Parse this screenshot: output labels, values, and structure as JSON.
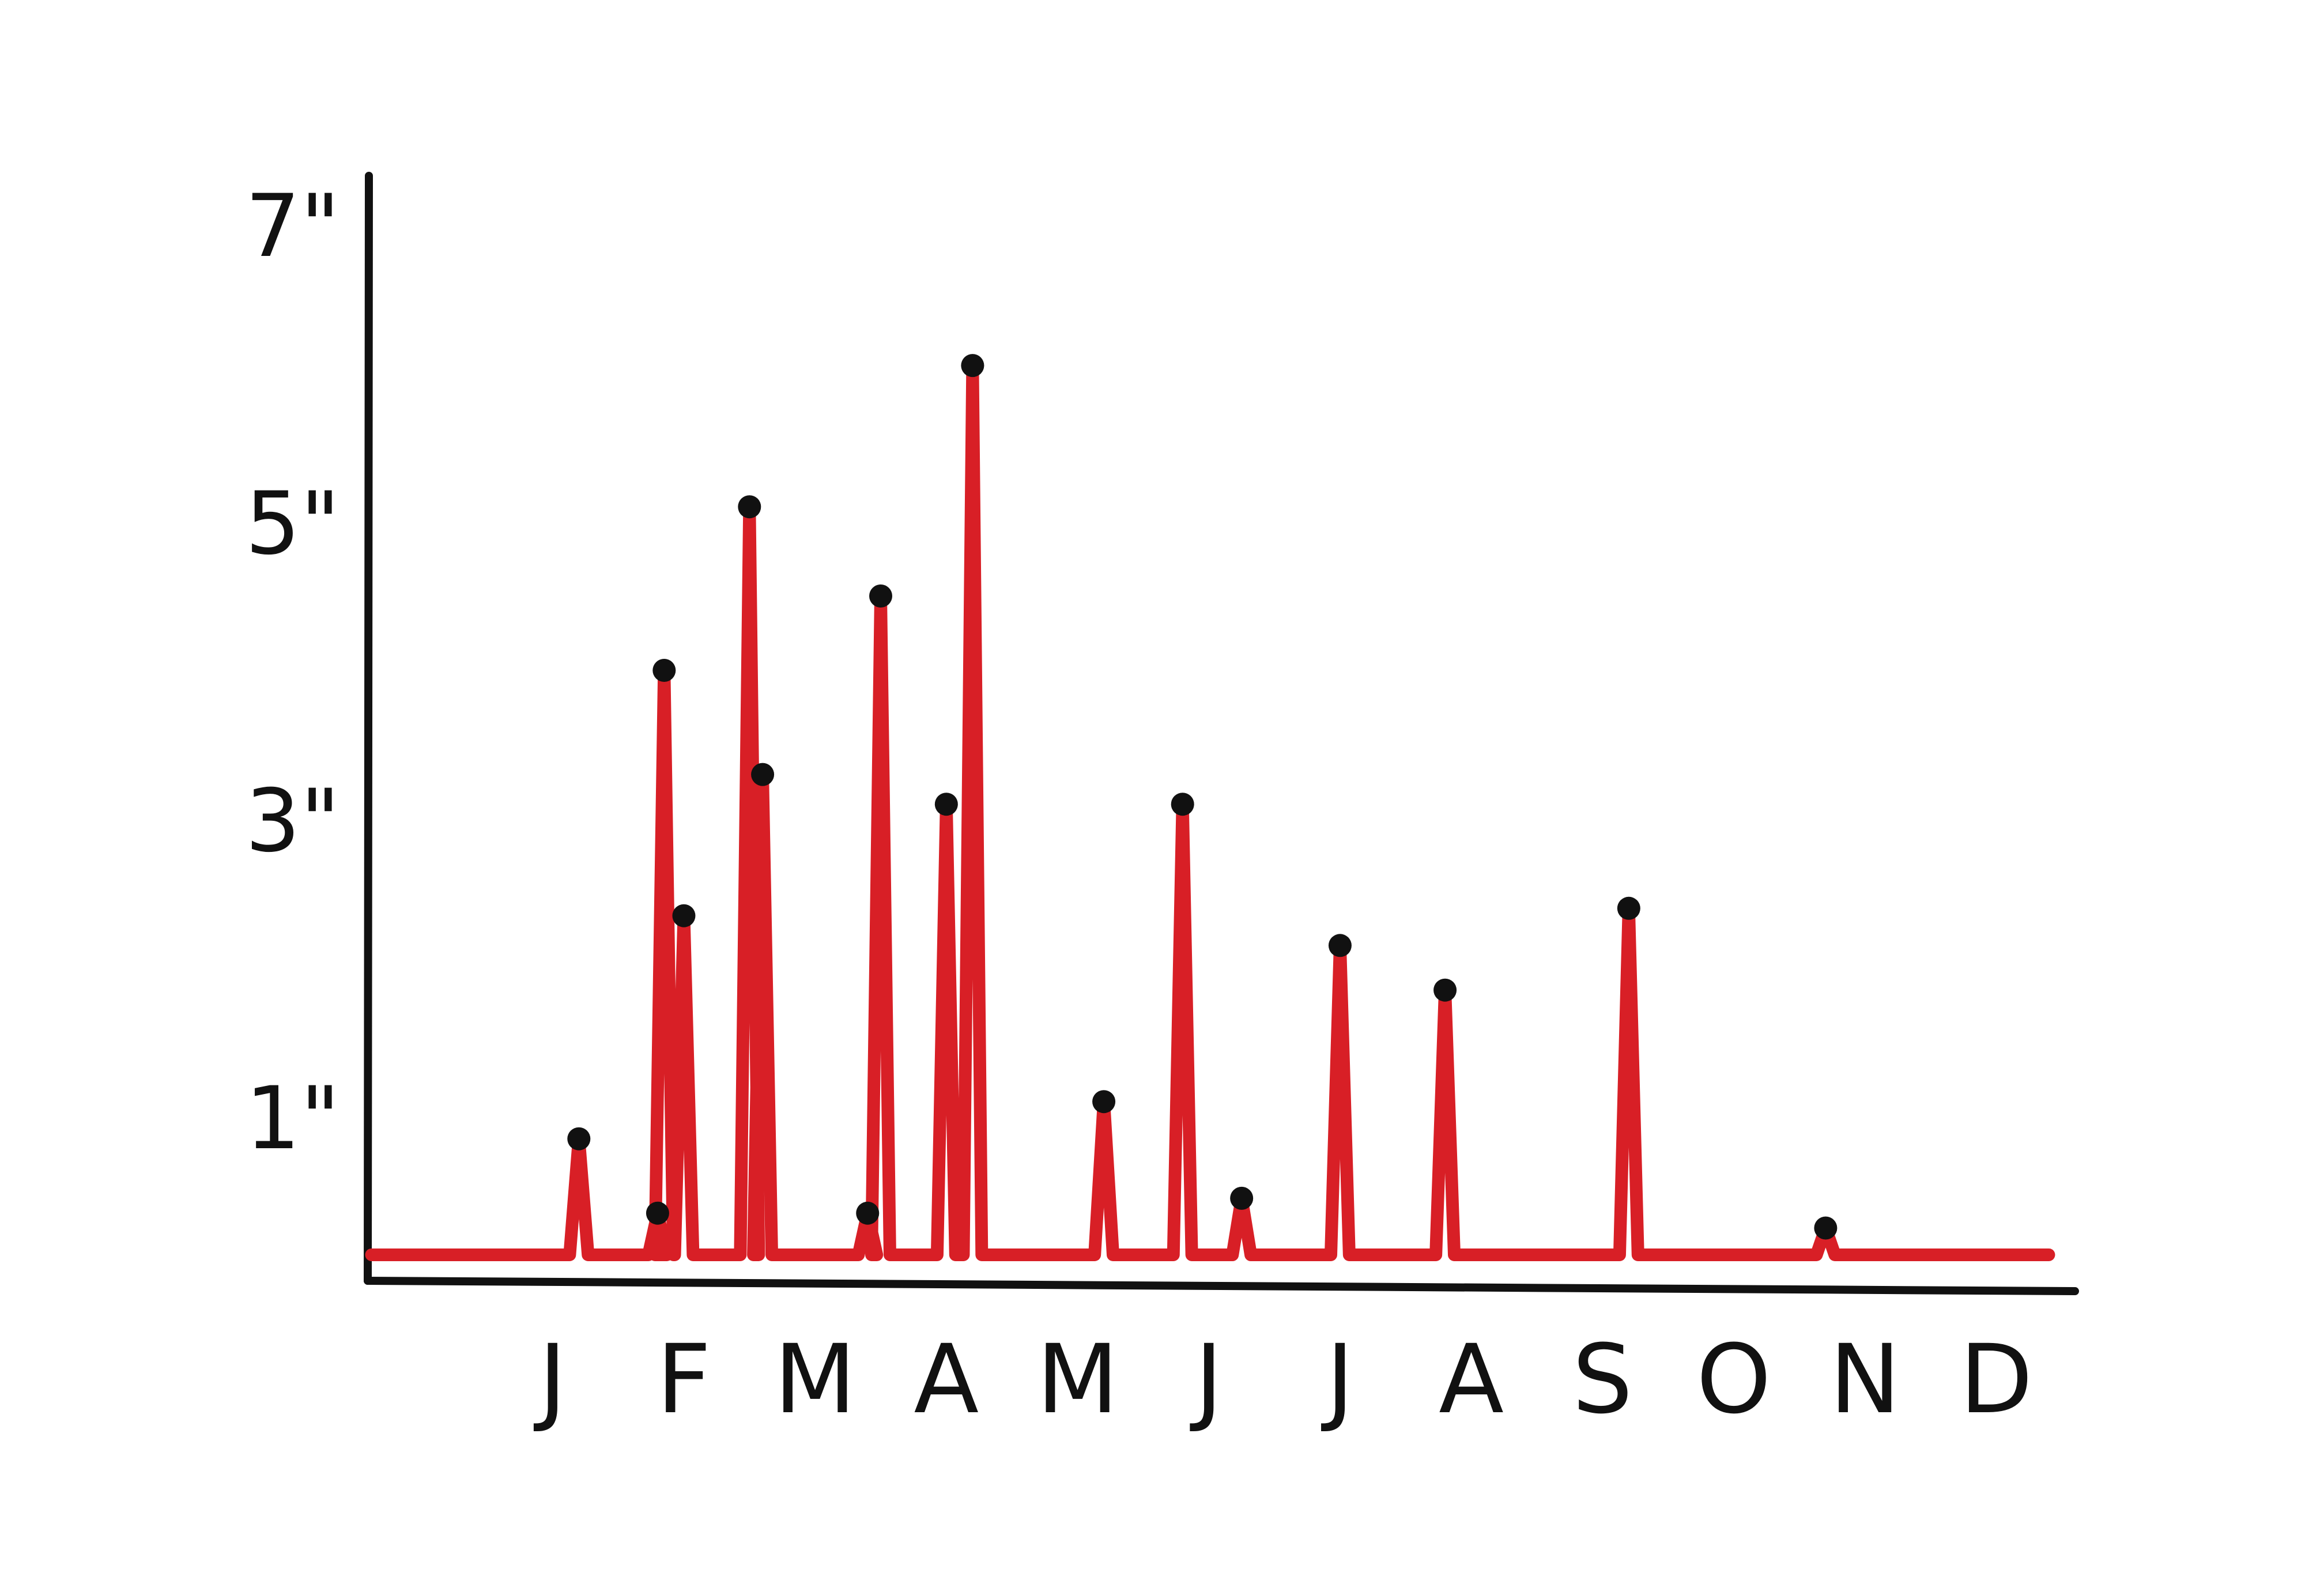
{
  "chart_data": {
    "type": "line",
    "title": "",
    "xlabel": "",
    "ylabel": "",
    "ylim": [
      0,
      7.5
    ],
    "y_ticks": [
      {
        "value": 1,
        "label": "1\""
      },
      {
        "value": 3,
        "label": "3\""
      },
      {
        "value": 5,
        "label": "5\""
      },
      {
        "value": 7,
        "label": "7\""
      }
    ],
    "categories": [
      "J",
      "F",
      "M",
      "A",
      "M",
      "J",
      "J",
      "A",
      "S",
      "O",
      "N",
      "D"
    ],
    "category_positions": [
      0.5,
      1.5,
      2.5,
      3.5,
      4.5,
      5.5,
      6.5,
      7.5,
      8.5,
      9.5,
      10.5,
      11.5
    ],
    "xlim": [
      -0.9,
      12.1
    ],
    "grid": false,
    "legend": "none",
    "series": [
      {
        "color": "#d81f26",
        "marker_color": "#111111",
        "points": [
          {
            "x": 0.7,
            "y": 0.85
          },
          {
            "x": 1.3,
            "y": 0.35
          },
          {
            "x": 1.35,
            "y": 4.0
          },
          {
            "x": 1.5,
            "y": 2.35
          },
          {
            "x": 2.0,
            "y": 5.1
          },
          {
            "x": 2.1,
            "y": 3.3
          },
          {
            "x": 2.9,
            "y": 0.35
          },
          {
            "x": 3.0,
            "y": 4.5
          },
          {
            "x": 3.5,
            "y": 3.1
          },
          {
            "x": 3.7,
            "y": 6.05
          },
          {
            "x": 4.7,
            "y": 1.1
          },
          {
            "x": 5.3,
            "y": 3.1
          },
          {
            "x": 5.75,
            "y": 0.45
          },
          {
            "x": 6.5,
            "y": 2.15
          },
          {
            "x": 7.3,
            "y": 1.85
          },
          {
            "x": 8.7,
            "y": 2.4
          },
          {
            "x": 10.2,
            "y": 0.25
          }
        ]
      }
    ]
  }
}
